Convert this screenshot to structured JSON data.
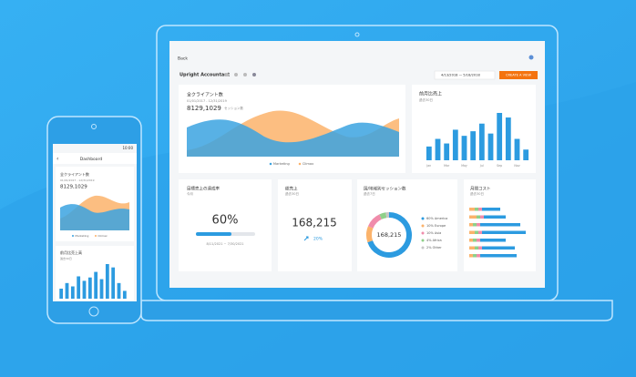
{
  "laptop": {
    "back": "Back",
    "account": "Upright Accountant",
    "date_range": "4/13/2018 — 5/18/2018",
    "button": "CREATE A VIEW",
    "clients": {
      "title": "全クライアント数",
      "subtitle": "01/01/2017 - 12/31/2019",
      "total": "8129,1029",
      "unit": "セッション数",
      "legend": [
        {
          "name": "Marketing",
          "color": "#3ba3e0"
        },
        {
          "name": "Climax",
          "color": "#fbb36b"
        }
      ]
    },
    "monthly_sales": {
      "title": "前月比売上",
      "subtitle": "過去30日",
      "color": "#2c9be0",
      "categories": [
        "Jan",
        null,
        "Mar",
        null,
        "May",
        null,
        "Jul",
        null,
        "Sep",
        null,
        "Nov",
        null
      ],
      "values": [
        18,
        28,
        22,
        40,
        32,
        38,
        48,
        35,
        62,
        56,
        28,
        14
      ]
    },
    "goal": {
      "title": "目標売上の達成率",
      "subtitle": "今月",
      "percent": 60,
      "percent_label": "60%",
      "dates": "8/11/2021 ~ 7/30/2021"
    },
    "total_sales": {
      "title": "総売上",
      "subtitle": "過去30日",
      "value": "168,215",
      "change": "20%"
    },
    "sessions": {
      "title": "国/地域別セッション数",
      "subtitle": "過去7日",
      "total": "168,215",
      "segments": [
        {
          "label": "60% America",
          "value": 60,
          "color": "#2c9be0"
        },
        {
          "label": "10% Europe",
          "value": 10,
          "color": "#fbb36b"
        },
        {
          "label": "10% Asia",
          "value": 10,
          "color": "#f08cab"
        },
        {
          "label": "4% Africa",
          "value": 4,
          "color": "#8fd08a"
        },
        {
          "label": "2% Other",
          "value": 2,
          "color": "#c7c7c7"
        }
      ]
    },
    "cost": {
      "title": "月間コスト",
      "subtitle": "過去30日",
      "colors": [
        "#fbb36b",
        "#8fd08a",
        "#f08cab",
        "#2c9be0"
      ],
      "rows": [
        [
          3,
          2,
          2,
          10
        ],
        [
          4,
          2,
          2,
          12
        ],
        [
          2,
          2,
          2,
          22
        ],
        [
          3,
          2,
          2,
          24
        ],
        [
          2,
          2,
          2,
          14
        ],
        [
          3,
          2,
          2,
          18
        ],
        [
          2,
          2,
          2,
          20
        ]
      ]
    }
  },
  "phone": {
    "time": "10:00",
    "title": "Dashboard",
    "sales_title": "前月比売上高"
  }
}
